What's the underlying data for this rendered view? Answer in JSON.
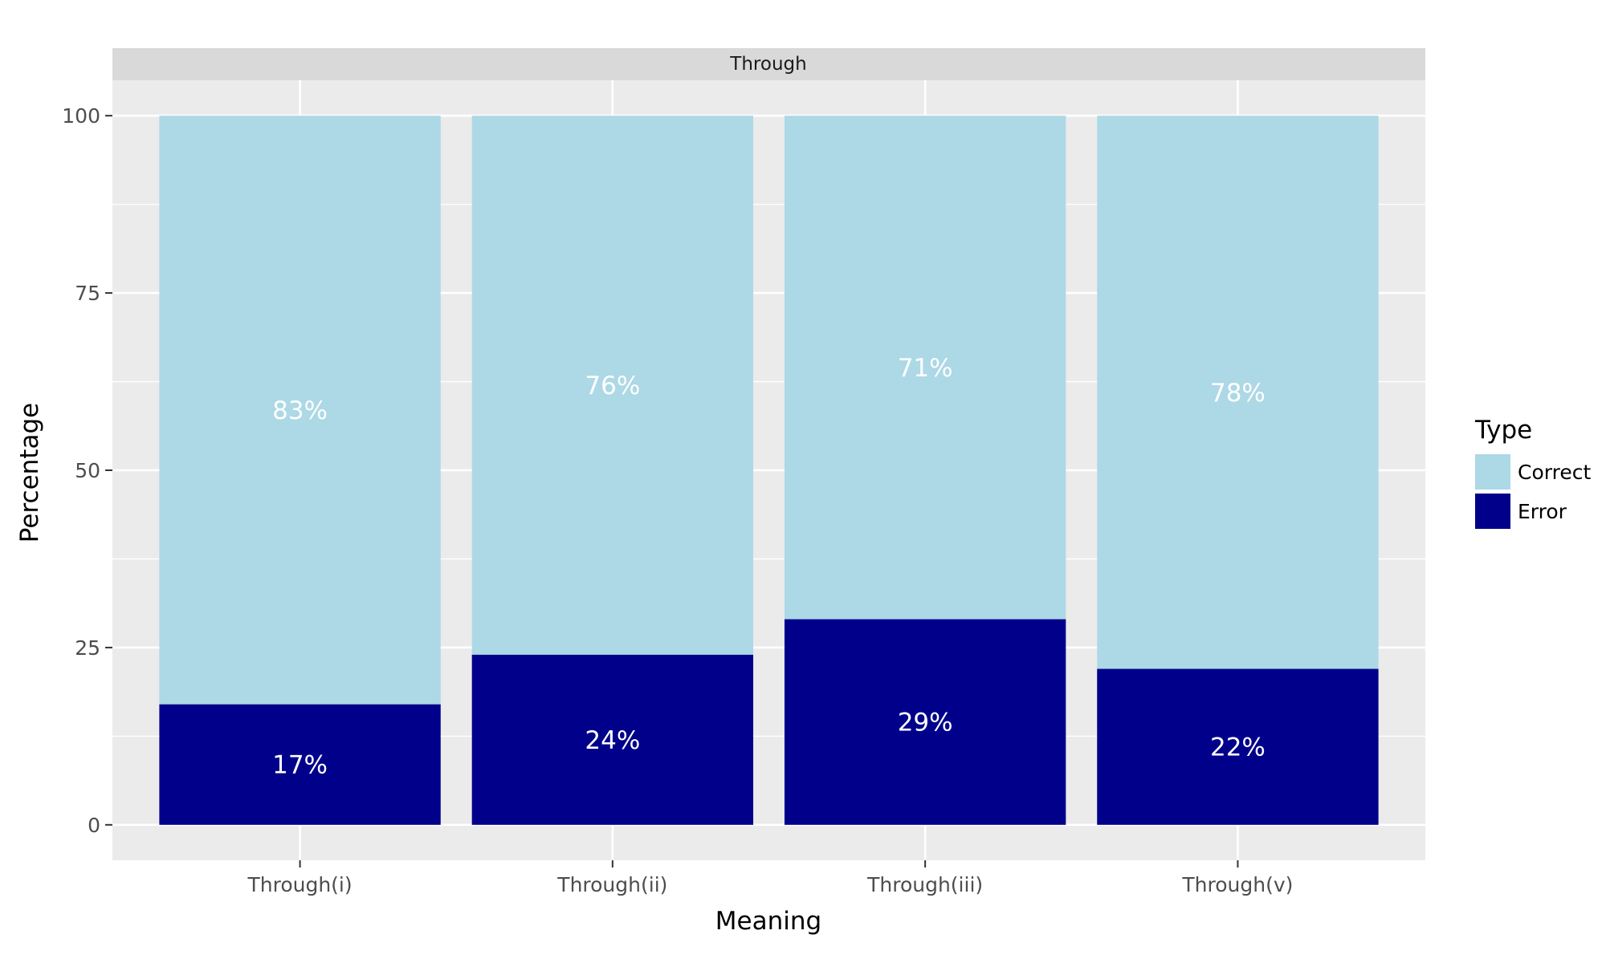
{
  "chart_data": {
    "type": "bar",
    "stacked": true,
    "facet_title": "Through",
    "categories": [
      "Through(i)",
      "Through(ii)",
      "Through(iii)",
      "Through(v)"
    ],
    "series": [
      {
        "name": "Error",
        "color": "#00008b",
        "values": [
          17,
          24,
          29,
          22
        ],
        "labels": [
          "17%",
          "24%",
          "29%",
          "22%"
        ]
      },
      {
        "name": "Correct",
        "color": "#add8e6",
        "values": [
          83,
          76,
          71,
          78
        ],
        "labels": [
          "83%",
          "76%",
          "71%",
          "78%"
        ]
      }
    ],
    "xlabel": "Meaning",
    "ylabel": "Percentage",
    "ylim": [
      -5,
      105
    ],
    "yticks": [
      0,
      25,
      50,
      75,
      100
    ],
    "grid": true,
    "legend": {
      "title": "Type",
      "placement": "right",
      "entries": [
        {
          "label": "Correct",
          "color": "#add8e6"
        },
        {
          "label": "Error",
          "color": "#00008b"
        }
      ]
    },
    "colors": {
      "panel": "#ebebeb",
      "strip": "#d9d9d9",
      "grid": "#ffffff",
      "bar_label": "#ffffff"
    }
  }
}
